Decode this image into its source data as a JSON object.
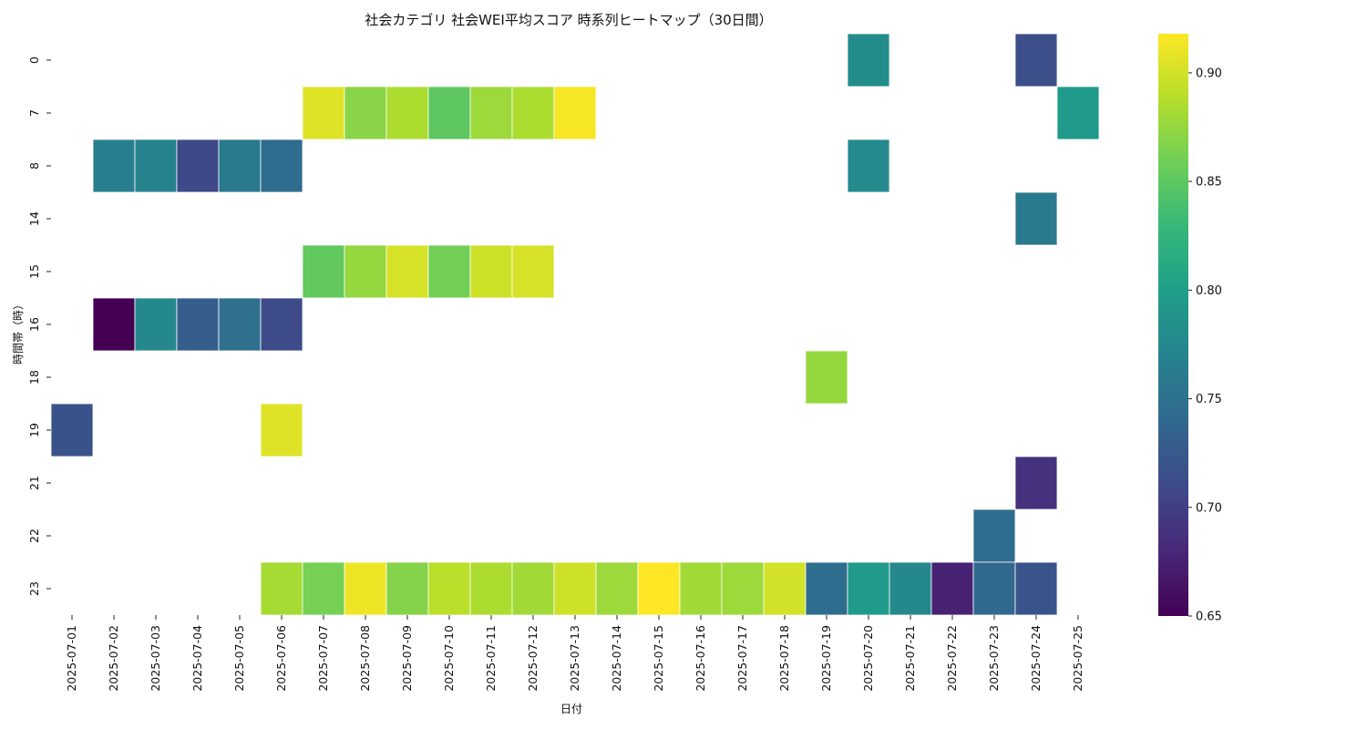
{
  "chart_data": {
    "type": "heatmap",
    "title": "社会カテゴリ 社会WEI平均スコア 時系列ヒートマップ（30日間）",
    "xlabel": "日付",
    "ylabel": "時間帯（時）",
    "x_categories": [
      "2025-07-01",
      "2025-07-02",
      "2025-07-03",
      "2025-07-04",
      "2025-07-05",
      "2025-07-06",
      "2025-07-07",
      "2025-07-08",
      "2025-07-09",
      "2025-07-10",
      "2025-07-11",
      "2025-07-12",
      "2025-07-13",
      "2025-07-14",
      "2025-07-15",
      "2025-07-16",
      "2025-07-17",
      "2025-07-18",
      "2025-07-19",
      "2025-07-20",
      "2025-07-21",
      "2025-07-22",
      "2025-07-23",
      "2025-07-24",
      "2025-07-25"
    ],
    "y_categories": [
      "0",
      "7",
      "8",
      "14",
      "15",
      "16",
      "18",
      "19",
      "21",
      "22",
      "23"
    ],
    "colormap": "viridis",
    "color_range": [
      0.65,
      0.918
    ],
    "colorbar_ticks": [
      0.65,
      0.7,
      0.75,
      0.8,
      0.85,
      0.9
    ],
    "colorbar_tick_labels": [
      "0.65",
      "0.70",
      "0.75",
      "0.80",
      "0.85",
      "0.90"
    ],
    "grid": false,
    "cells": [
      {
        "x": "2025-07-20",
        "y": "0",
        "value": 0.78
      },
      {
        "x": "2025-07-24",
        "y": "0",
        "value": 0.715
      },
      {
        "x": "2025-07-07",
        "y": "7",
        "value": 0.905
      },
      {
        "x": "2025-07-08",
        "y": "7",
        "value": 0.87
      },
      {
        "x": "2025-07-09",
        "y": "7",
        "value": 0.885
      },
      {
        "x": "2025-07-10",
        "y": "7",
        "value": 0.85
      },
      {
        "x": "2025-07-11",
        "y": "7",
        "value": 0.878
      },
      {
        "x": "2025-07-12",
        "y": "7",
        "value": 0.885
      },
      {
        "x": "2025-07-13",
        "y": "7",
        "value": 0.915
      },
      {
        "x": "2025-07-25",
        "y": "7",
        "value": 0.795
      },
      {
        "x": "2025-07-02",
        "y": "8",
        "value": 0.765
      },
      {
        "x": "2025-07-03",
        "y": "8",
        "value": 0.77
      },
      {
        "x": "2025-07-04",
        "y": "8",
        "value": 0.71
      },
      {
        "x": "2025-07-05",
        "y": "8",
        "value": 0.76
      },
      {
        "x": "2025-07-06",
        "y": "8",
        "value": 0.745
      },
      {
        "x": "2025-07-20",
        "y": "8",
        "value": 0.778
      },
      {
        "x": "2025-07-24",
        "y": "14",
        "value": 0.76
      },
      {
        "x": "2025-07-07",
        "y": "15",
        "value": 0.852
      },
      {
        "x": "2025-07-08",
        "y": "15",
        "value": 0.875
      },
      {
        "x": "2025-07-09",
        "y": "15",
        "value": 0.902
      },
      {
        "x": "2025-07-10",
        "y": "15",
        "value": 0.86
      },
      {
        "x": "2025-07-11",
        "y": "15",
        "value": 0.898
      },
      {
        "x": "2025-07-12",
        "y": "15",
        "value": 0.902
      },
      {
        "x": "2025-07-02",
        "y": "16",
        "value": 0.65
      },
      {
        "x": "2025-07-03",
        "y": "16",
        "value": 0.775
      },
      {
        "x": "2025-07-04",
        "y": "16",
        "value": 0.73
      },
      {
        "x": "2025-07-05",
        "y": "16",
        "value": 0.748
      },
      {
        "x": "2025-07-06",
        "y": "16",
        "value": 0.712
      },
      {
        "x": "2025-07-19",
        "y": "18",
        "value": 0.875
      },
      {
        "x": "2025-07-01",
        "y": "19",
        "value": 0.718
      },
      {
        "x": "2025-07-06",
        "y": "19",
        "value": 0.905
      },
      {
        "x": "2025-07-24",
        "y": "21",
        "value": 0.688
      },
      {
        "x": "2025-07-23",
        "y": "22",
        "value": 0.745
      },
      {
        "x": "2025-07-06",
        "y": "23",
        "value": 0.882
      },
      {
        "x": "2025-07-07",
        "y": "23",
        "value": 0.862
      },
      {
        "x": "2025-07-08",
        "y": "23",
        "value": 0.912
      },
      {
        "x": "2025-07-09",
        "y": "23",
        "value": 0.868
      },
      {
        "x": "2025-07-10",
        "y": "23",
        "value": 0.89
      },
      {
        "x": "2025-07-11",
        "y": "23",
        "value": 0.885
      },
      {
        "x": "2025-07-12",
        "y": "23",
        "value": 0.88
      },
      {
        "x": "2025-07-13",
        "y": "23",
        "value": 0.898
      },
      {
        "x": "2025-07-14",
        "y": "23",
        "value": 0.878
      },
      {
        "x": "2025-07-15",
        "y": "23",
        "value": 0.918
      },
      {
        "x": "2025-07-16",
        "y": "23",
        "value": 0.88
      },
      {
        "x": "2025-07-17",
        "y": "23",
        "value": 0.878
      },
      {
        "x": "2025-07-18",
        "y": "23",
        "value": 0.9
      },
      {
        "x": "2025-07-19",
        "y": "23",
        "value": 0.745
      },
      {
        "x": "2025-07-20",
        "y": "23",
        "value": 0.795
      },
      {
        "x": "2025-07-21",
        "y": "23",
        "value": 0.775
      },
      {
        "x": "2025-07-22",
        "y": "23",
        "value": 0.675
      },
      {
        "x": "2025-07-23",
        "y": "23",
        "value": 0.74
      },
      {
        "x": "2025-07-24",
        "y": "23",
        "value": 0.72
      }
    ]
  }
}
